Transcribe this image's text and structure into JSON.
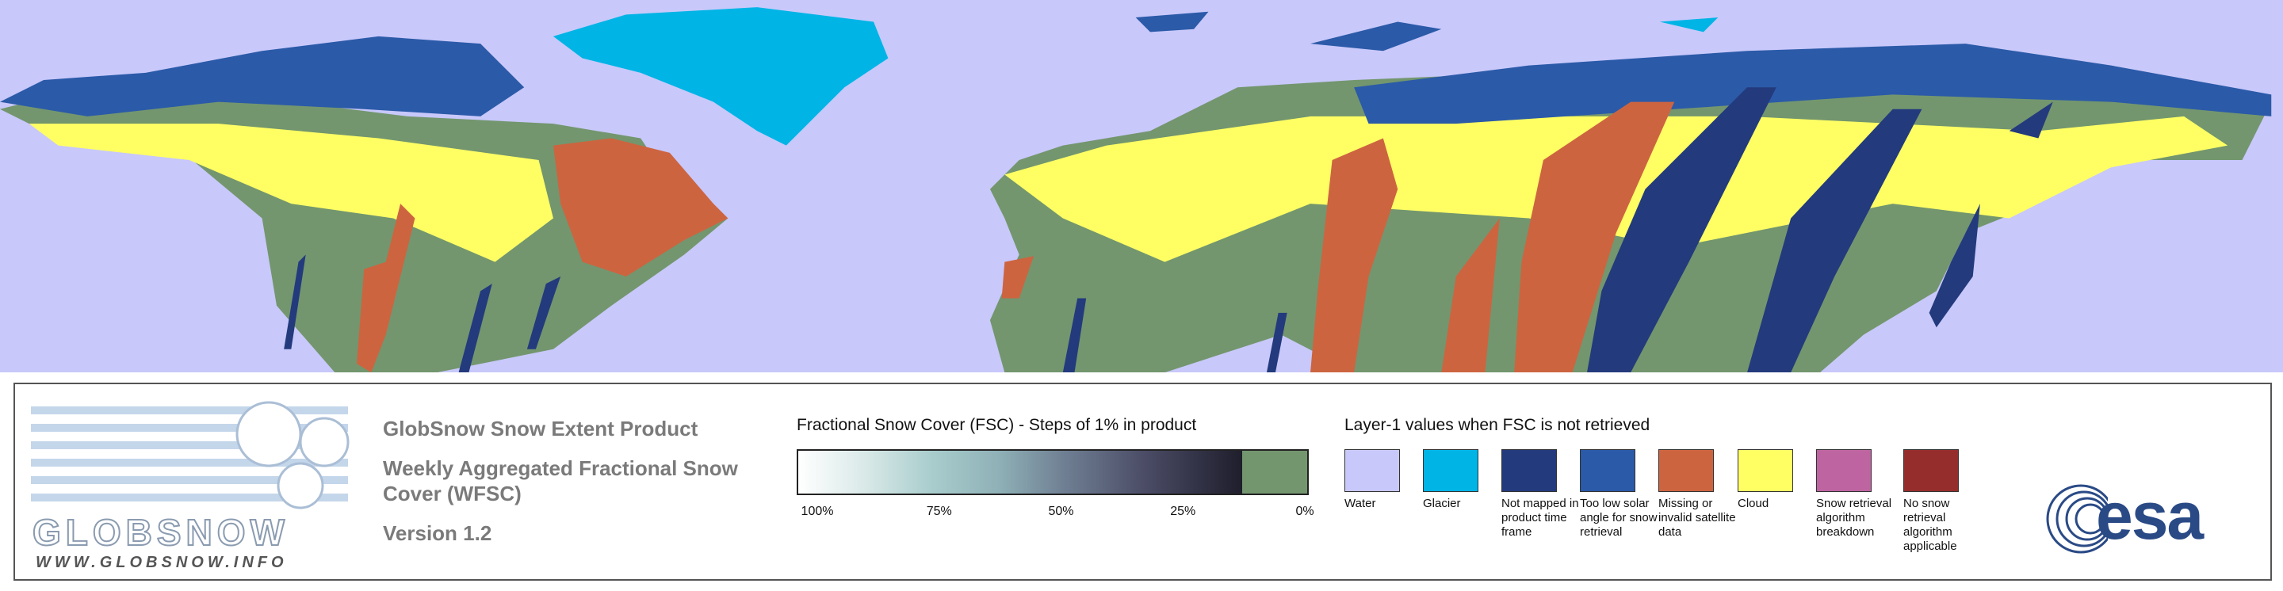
{
  "product": {
    "title": "GlobSnow Snow Extent Product",
    "subtitle": "Weekly Aggregated Fractional Snow Cover (WFSC)",
    "version": "Version 1.2"
  },
  "logo": {
    "name": "GLOBSNOW",
    "url": "WWW.GLOBSNOW.INFO"
  },
  "fsc_scale": {
    "title": "Fractional Snow Cover (FSC) - Steps of 1% in product",
    "snow_free_color": "#73966e",
    "ticks": [
      "100%",
      "75%",
      "50%",
      "25%",
      "0%"
    ]
  },
  "layer1": {
    "title": "Layer-1 values when FSC is not retrieved",
    "items": [
      {
        "label": "Water",
        "color": "#c8c8fa"
      },
      {
        "label": "Glacier",
        "color": "#00b4e6"
      },
      {
        "label": "Not mapped in product time frame",
        "color": "#233a7d"
      },
      {
        "label": "Too low solar angle for snow retrieval",
        "color": "#2b5aa8"
      },
      {
        "label": "Missing or invalid satellite data",
        "color": "#cd6440"
      },
      {
        "label": "Cloud",
        "color": "#ffff64"
      },
      {
        "label": "Snow retrieval algorithm breakdown",
        "color": "#be64a0"
      },
      {
        "label": "No snow retrieval algorithm applicable",
        "color": "#962d2d"
      }
    ]
  },
  "esa": "esa"
}
